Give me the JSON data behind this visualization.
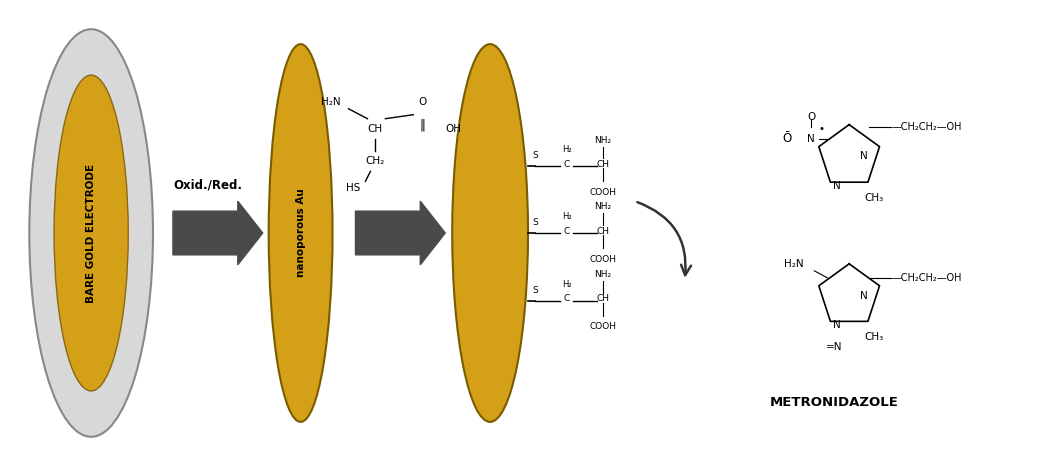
{
  "bg_color": "#ffffff",
  "gold_color": "#D4A017",
  "gold_dark": "#B8860B",
  "gray_outer": "#C0C0C0",
  "arrow_color": "#4a4a4a",
  "text_color": "#000000",
  "bold_label_color": "#1a1a8c",
  "title": "",
  "bare_electrode_label": "BARE GOLD ELECTRODE",
  "nanoporous_label": "nanoporous Au",
  "metronidazole_label": "METRONIDAZOLE",
  "oxid_red_label": "Oxid./Red."
}
